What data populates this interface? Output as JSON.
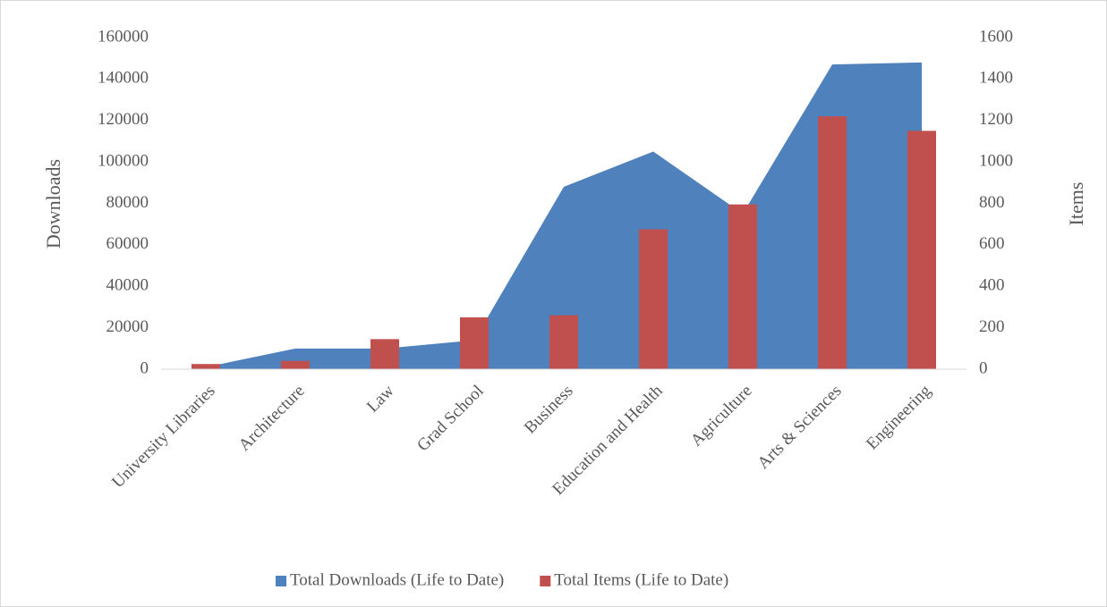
{
  "chart_data": {
    "type": "area_bar",
    "categories": [
      "University Libraries",
      "Architecture",
      "Law",
      "Grad School",
      "Business",
      "Education and Health",
      "Agriculture",
      "Arts & Sciences",
      "Engineering"
    ],
    "series": [
      {
        "name": "Total Downloads (Life to Date)",
        "color": "#4f81bd",
        "type": "area",
        "axis": "y",
        "values": [
          1000,
          10000,
          10000,
          14000,
          88000,
          105000,
          75000,
          147000,
          148000
        ]
      },
      {
        "name": "Total Items (Life to Date)",
        "color": "#c0504d",
        "type": "bar",
        "axis": "y2",
        "values": [
          25,
          40,
          145,
          250,
          260,
          675,
          795,
          1220,
          1150
        ]
      }
    ],
    "ylabel": "Downloads",
    "y2label": "Items",
    "ylim": [
      0,
      160000
    ],
    "yticks": [
      0,
      20000,
      40000,
      60000,
      80000,
      100000,
      120000,
      140000,
      160000
    ],
    "y2lim": [
      0,
      1600
    ],
    "y2ticks": [
      0,
      200,
      400,
      600,
      800,
      1000,
      1200,
      1400,
      1600
    ],
    "legend": "bottom"
  }
}
